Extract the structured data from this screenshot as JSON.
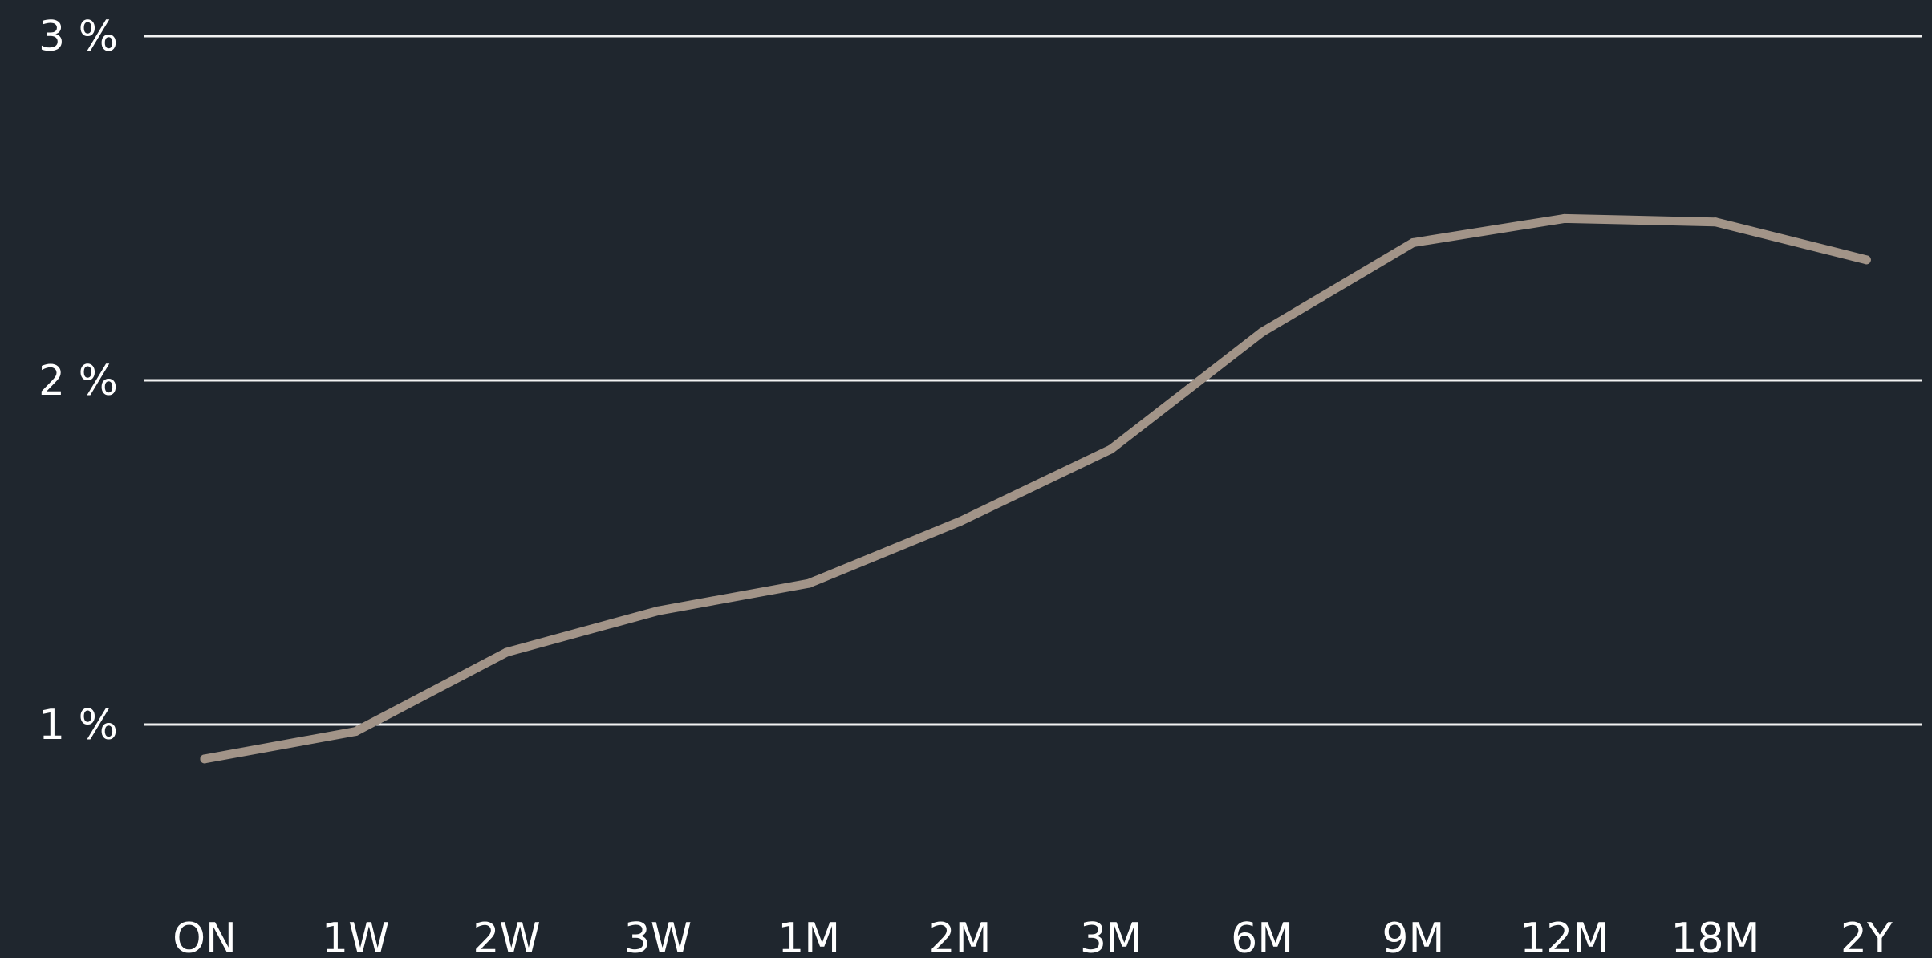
{
  "chart_data": {
    "type": "line",
    "title": "",
    "xlabel": "",
    "ylabel": "",
    "categories": [
      "ON",
      "1W",
      "2W",
      "3W",
      "1M",
      "2M",
      "3M",
      "6M",
      "9M",
      "12M",
      "18M",
      "2Y"
    ],
    "series": [
      {
        "values": [
          0.9,
          0.98,
          1.21,
          1.33,
          1.41,
          1.59,
          1.8,
          2.14,
          2.4,
          2.47,
          2.46,
          2.35
        ],
        "color": "#a29488"
      }
    ],
    "ylim": [
      0.7,
      3.0
    ],
    "yticks": [
      {
        "value": 1,
        "label": "1 %"
      },
      {
        "value": 2,
        "label": "2 %"
      },
      {
        "value": 3,
        "label": "3 %"
      }
    ],
    "grid": true,
    "legend": "none",
    "colors": {
      "background": "#1f262e",
      "gridline": "#f2f2f2",
      "text": "#ffffff"
    }
  }
}
